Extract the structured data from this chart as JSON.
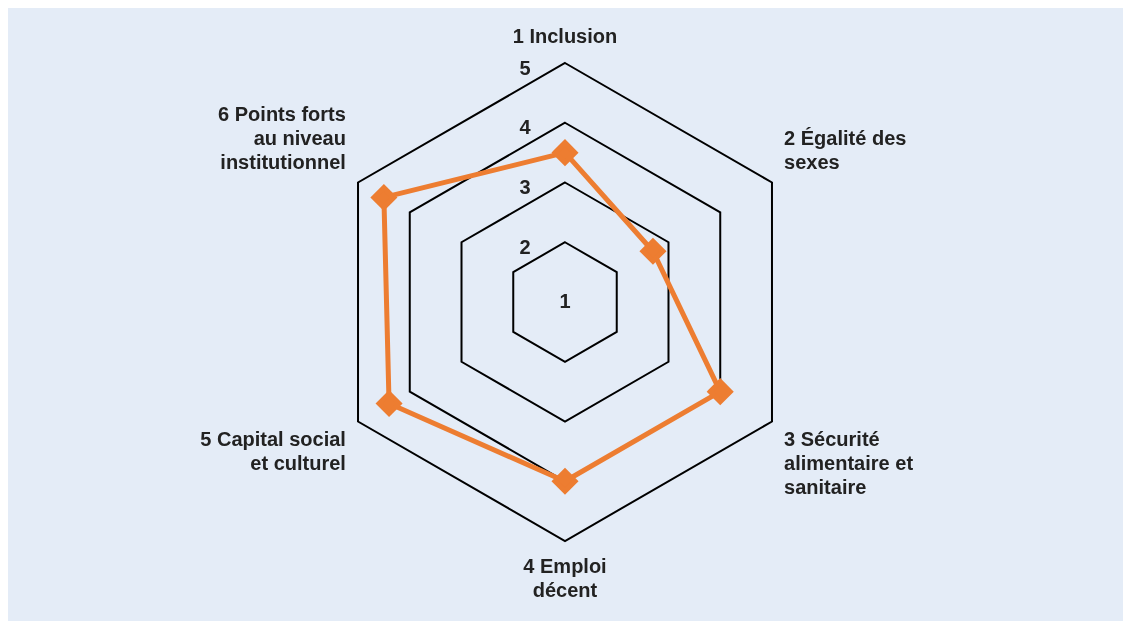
{
  "chart_data": {
    "type": "radar",
    "categories": [
      "1 Inclusion",
      "2 Égalité des sexes",
      "3 Sécurité alimentaire et sanitaire",
      "4 Emploi décent",
      "5 Capital social et culturel",
      "6 Points forts au niveau institutionnel"
    ],
    "series": [
      {
        "color": "#ed7d31",
        "values": [
          3.5,
          2.7,
          4,
          4,
          4.4,
          4.5
        ]
      }
    ],
    "ylim": [
      1,
      5
    ],
    "yticks": [
      1,
      2,
      3,
      4,
      5
    ],
    "marker": "diamond",
    "legend": false
  }
}
